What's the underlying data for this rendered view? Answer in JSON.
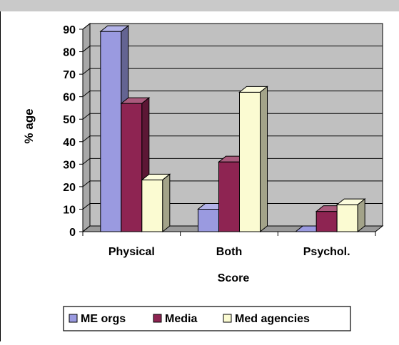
{
  "chart_data": {
    "type": "bar",
    "categories": [
      "Physical",
      "Both",
      "Psychol."
    ],
    "series": [
      {
        "name": "ME orgs",
        "values": [
          89,
          10,
          0
        ],
        "color": "#9a9ae0"
      },
      {
        "name": "Media",
        "values": [
          57,
          31,
          9
        ],
        "color": "#8e2452"
      },
      {
        "name": "Med agencies",
        "values": [
          23,
          62,
          12
        ],
        "color": "#fbfbd2"
      }
    ],
    "title": "",
    "xlabel": "Score",
    "ylabel": "% age",
    "ylim": [
      0,
      90
    ],
    "yticks": [
      0,
      10,
      20,
      30,
      40,
      50,
      60,
      70,
      80,
      90
    ],
    "grid": true,
    "legend_position": "bottom",
    "style": "3d-clustered-bar",
    "plot_background": "#c0c0c0"
  }
}
